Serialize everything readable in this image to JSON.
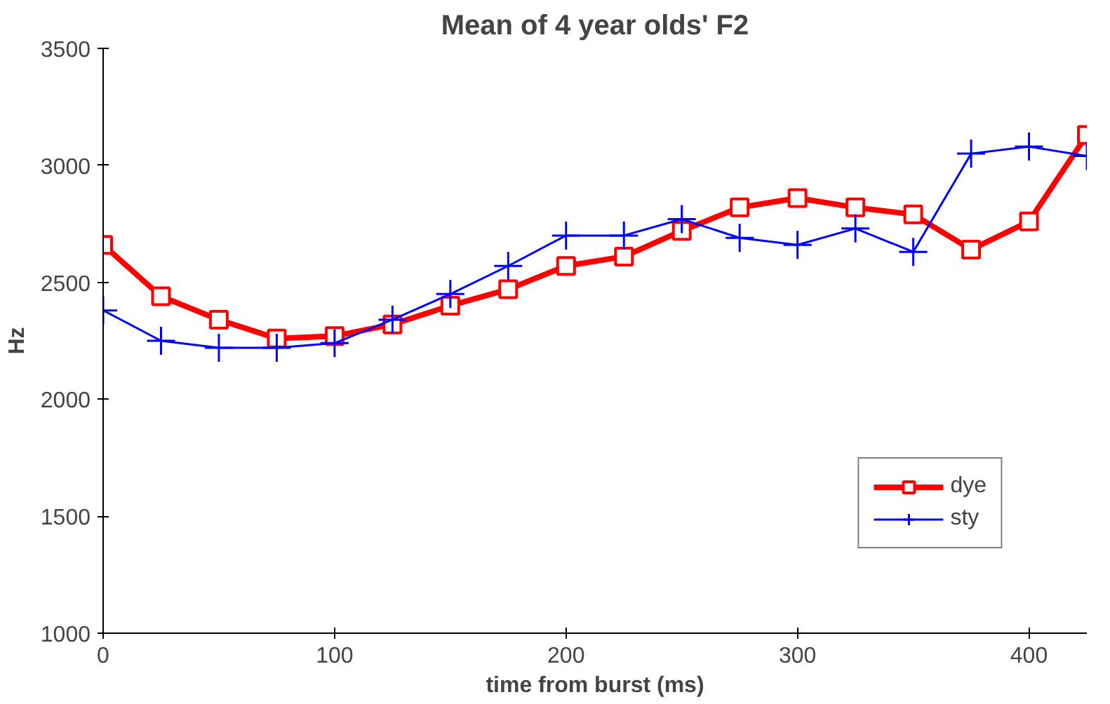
{
  "chart_data": {
    "type": "line",
    "title": "Mean of 4 year olds' F2",
    "xlabel": "time from burst (ms)",
    "ylabel": "Hz",
    "x": [
      0,
      25,
      50,
      75,
      100,
      125,
      150,
      175,
      200,
      225,
      250,
      275,
      300,
      325,
      350,
      375,
      400,
      425
    ],
    "series": [
      {
        "name": "dye",
        "color": "#ff0000",
        "marker": "square",
        "values": [
          2660,
          2440,
          2340,
          2260,
          2270,
          2320,
          2400,
          2470,
          2570,
          2610,
          2720,
          2820,
          2860,
          2820,
          2790,
          2640,
          2760,
          3130
        ]
      },
      {
        "name": "sty",
        "color": "#0000ff",
        "marker": "cross",
        "values": [
          2380,
          2250,
          2220,
          2220,
          2240,
          2340,
          2450,
          2570,
          2700,
          2700,
          2770,
          2690,
          2660,
          2730,
          2630,
          3050,
          3080,
          3040
        ]
      }
    ],
    "xlim": [
      0,
      425
    ],
    "ylim": [
      1000,
      3500
    ],
    "xticks": [
      0,
      100,
      200,
      300,
      400
    ],
    "yticks": [
      1000,
      1500,
      2000,
      2500,
      3000,
      3500
    ],
    "grid": false,
    "legend": "bottom right",
    "line_style": "solid"
  }
}
